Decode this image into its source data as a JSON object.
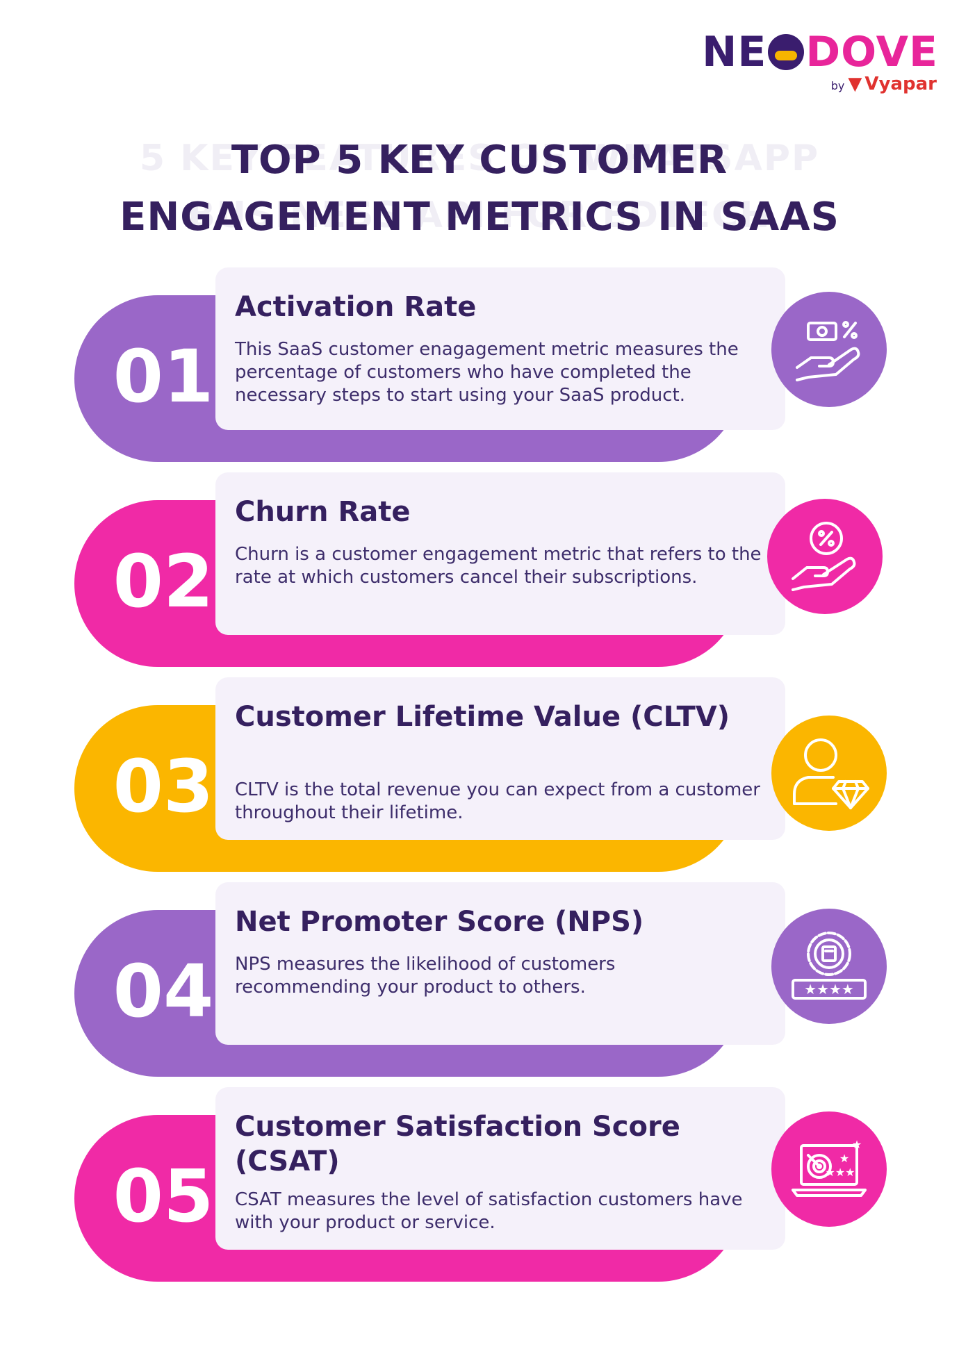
{
  "logo": {
    "part1": "NE",
    "part2": "DOVE",
    "by": "by",
    "brand": "Vyapar"
  },
  "watermark": {
    "line1": "5 KEY FEATURES OF WHATSAPP",
    "line2": "BUSINESS API FOR EDTECH"
  },
  "title": {
    "line1": "TOP 5 KEY CUSTOMER",
    "line2": "ENGAGEMENT METRICS IN SAAS"
  },
  "colors": {
    "purple": "#9a67c8",
    "pink": "#f02aa6",
    "yellow": "#fbb600",
    "navy": "#35205f",
    "card": "#f5f1fa"
  },
  "items": [
    {
      "number": "01",
      "title": "Activation Rate",
      "text": "This SaaS customer enagagement metric measures the percentage of customers who have completed the necessary steps to start using your SaaS product.",
      "icon": "hand-money-percent-icon",
      "color": "purple"
    },
    {
      "number": "02",
      "title": "Churn Rate",
      "text": "Churn is a customer engagement metric that refers to the rate at which customers cancel their subscriptions.",
      "icon": "hand-percent-coin-icon",
      "color": "pink"
    },
    {
      "number": "03",
      "title": "Customer Lifetime Value (CLTV)",
      "text": "CLTV is the total revenue you can expect from a customer throughout their lifetime.",
      "icon": "person-diamond-icon",
      "color": "yellow"
    },
    {
      "number": "04",
      "title": "Net Promoter Score (NPS)",
      "text": "NPS measures the likelihood of customers recommending your product to others.",
      "icon": "badge-stars-icon",
      "color": "purple"
    },
    {
      "number": "05",
      "title": "Customer Satisfaction Score (CSAT)",
      "text": "CSAT measures the level of satisfaction customers have with your product or service.",
      "icon": "laptop-target-stars-icon",
      "color": "pink"
    }
  ]
}
